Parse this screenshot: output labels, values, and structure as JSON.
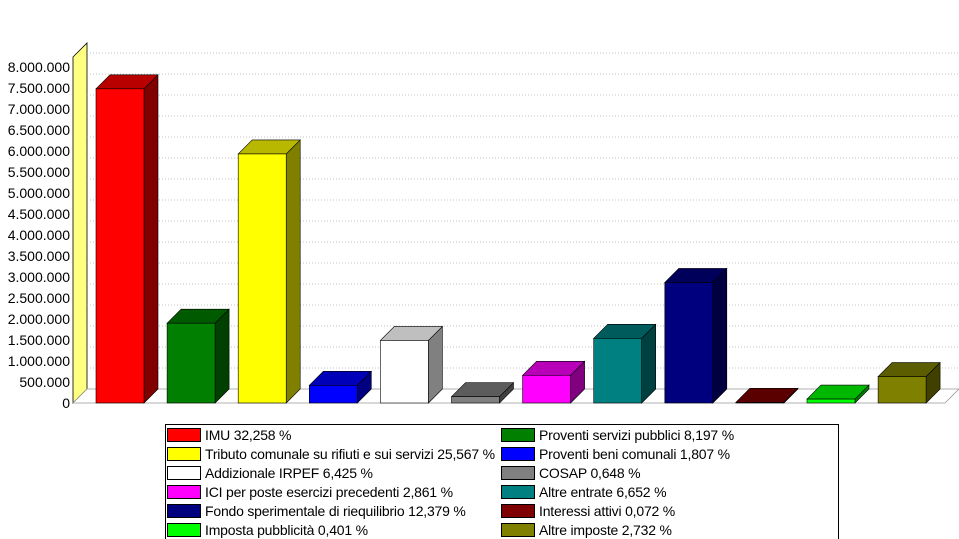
{
  "chart_data": {
    "type": "bar",
    "title": "",
    "xlabel": "",
    "ylabel": "",
    "ylim": [
      0,
      8000000
    ],
    "ytick_labels": [
      "0",
      "500.000",
      "1.000.000",
      "1.500.000",
      "2.000.000",
      "2.500.000",
      "3.000.000",
      "3.500.000",
      "4.000.000",
      "4.500.000",
      "5.000.000",
      "5.500.000",
      "6.000.000",
      "6.500.000",
      "7.000.000",
      "7.500.000",
      "8.000.000"
    ],
    "grid": true,
    "legend_placement": "bottom",
    "categories": [
      "IMU 32,258 %",
      "Proventi servizi pubblici 8,197 %",
      "Tributo comunale su rifiuti e sui servizi 25,567 %",
      "Proventi beni comunali 1,807 %",
      "Addizionale IRPEF 6,425 %",
      "COSAP 0,648 %",
      "ICI per poste esercizi precedenti 2,861 %",
      "Altre entrate 6,652 %",
      "Fondo sperimentale di riequilibrio 12,379 %",
      "Interessi attivi 0,072 %",
      "Imposta pubblicità 0,401 %",
      "Altre imposte 2,732 %"
    ],
    "values": [
      7480000,
      1900000,
      5930000,
      420000,
      1490000,
      150000,
      660000,
      1540000,
      2870000,
      17000,
      93000,
      630000
    ],
    "colors": [
      "#ff0000",
      "#007f00",
      "#ffff00",
      "#0000ff",
      "#ffffff",
      "#808080",
      "#ff00ff",
      "#008080",
      "#00007f",
      "#7f0000",
      "#00ff00",
      "#808000"
    ]
  },
  "legend": {
    "left_column": [
      0,
      2,
      4,
      6,
      8,
      10
    ],
    "right_column": [
      1,
      3,
      5,
      7,
      9,
      11
    ]
  }
}
